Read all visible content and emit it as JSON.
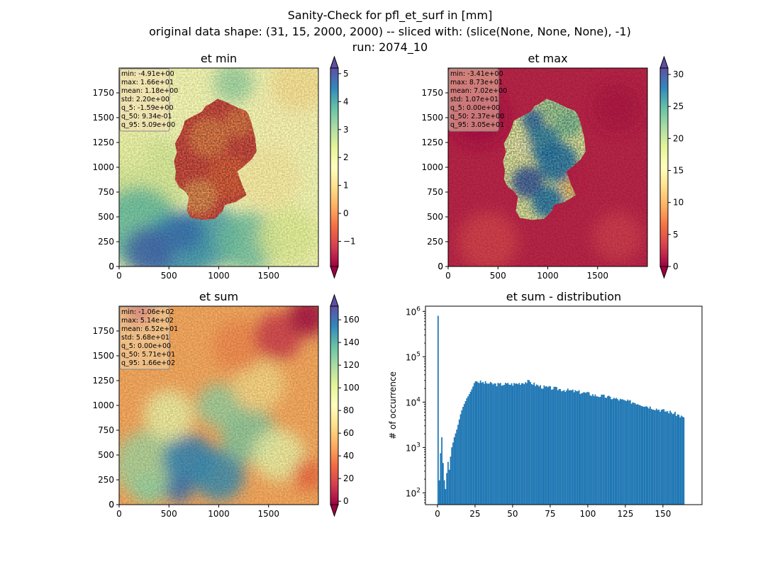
{
  "figure": {
    "title_lines": [
      "Sanity-Check for pfl_et_surf in [mm]",
      "original data shape: (31, 15, 2000, 2000) -- sliced with: (slice(None, None, None), -1)",
      "run: 2074_10"
    ]
  },
  "colors": {
    "hist_bar": "#1f77b4",
    "stats_box": "#f5deb3",
    "spectral": [
      "#9e0142",
      "#d53e4f",
      "#f46d43",
      "#fdae61",
      "#fee08b",
      "#ffffbf",
      "#e6f598",
      "#abdda4",
      "#66c2a5",
      "#3288bd",
      "#5e4fa2"
    ]
  },
  "chart_data": [
    {
      "type": "heatmap",
      "title": "et min",
      "xlim": [
        0,
        2000
      ],
      "ylim": [
        0,
        2000
      ],
      "xticks": [
        0,
        500,
        1000,
        1500
      ],
      "yticks": [
        0,
        250,
        500,
        750,
        1000,
        1250,
        1500,
        1750
      ],
      "colormap": "Spectral",
      "colorbar": {
        "min": -1.9,
        "max": 5.2,
        "ticks": [
          -1,
          0,
          1,
          2,
          3,
          4,
          5
        ],
        "extend": "both"
      },
      "stats": [
        "min: -4.91e+00",
        "max: 1.66e+01",
        "mean: 1.18e+00",
        "std: 2.20e+00",
        "q_5: -1.59e+00",
        "q_50: 9.34e-01",
        "q_95: 5.09e+00"
      ]
    },
    {
      "type": "heatmap",
      "title": "et max",
      "xlim": [
        0,
        2000
      ],
      "ylim": [
        0,
        2000
      ],
      "xticks": [
        0,
        500,
        1000,
        1500
      ],
      "yticks": [
        0,
        250,
        500,
        750,
        1000,
        1250,
        1500,
        1750
      ],
      "colormap": "Spectral",
      "colorbar": {
        "min": 0,
        "max": 31,
        "ticks": [
          0,
          5,
          10,
          15,
          20,
          25,
          30
        ],
        "extend": "both"
      },
      "stats": [
        "min: -3.41e+00",
        "max: 8.73e+01",
        "mean: 7.02e+00",
        "std: 1.07e+01",
        "q_5: 0.00e+00",
        "q_50: 2.37e+00",
        "q_95: 3.05e+01"
      ]
    },
    {
      "type": "heatmap",
      "title": "et sum",
      "xlim": [
        0,
        2000
      ],
      "ylim": [
        0,
        2000
      ],
      "xticks": [
        0,
        500,
        1000,
        1500
      ],
      "yticks": [
        0,
        250,
        500,
        750,
        1000,
        1250,
        1500,
        1750
      ],
      "colormap": "Spectral",
      "colorbar": {
        "min": -3,
        "max": 172,
        "ticks": [
          0,
          20,
          40,
          60,
          80,
          100,
          120,
          140,
          160
        ],
        "extend": "both"
      },
      "stats": [
        "min: -1.06e+02",
        "max: 5.14e+02",
        "mean: 6.52e+01",
        "std: 5.68e+01",
        "q_5: 0.00e+00",
        "q_50: 5.71e+01",
        "q_95: 1.66e+02"
      ]
    },
    {
      "type": "bar",
      "title": "et sum - distribution",
      "xlabel": "",
      "ylabel": "# of occurrence",
      "xlim": [
        -8,
        176
      ],
      "ylim": [
        55,
        1300000
      ],
      "yscale": "log",
      "xticks": [
        0,
        25,
        50,
        75,
        100,
        125,
        150
      ],
      "yticks": [
        100,
        1000,
        10000,
        100000,
        1000000
      ],
      "ytick_labels": [
        [
          "10",
          "2"
        ],
        [
          "10",
          "3"
        ],
        [
          "10",
          "4"
        ],
        [
          "10",
          "5"
        ],
        [
          "10",
          "6"
        ]
      ],
      "bin_width": 0.83,
      "anchors": [
        [
          0,
          800000
        ],
        [
          0.8,
          180
        ],
        [
          1.7,
          800
        ],
        [
          2.5,
          1700
        ],
        [
          3.4,
          400
        ],
        [
          4.2,
          180
        ],
        [
          5,
          120
        ],
        [
          5.9,
          300
        ],
        [
          6.7,
          500
        ],
        [
          7.6,
          300
        ],
        [
          8.4,
          700
        ],
        [
          9.3,
          1100
        ],
        [
          10,
          1300
        ],
        [
          11,
          1800
        ],
        [
          12,
          2200
        ],
        [
          13,
          2900
        ],
        [
          14,
          4000
        ],
        [
          15,
          5500
        ],
        [
          16,
          7000
        ],
        [
          17,
          8500
        ],
        [
          18,
          10000
        ],
        [
          19,
          12000
        ],
        [
          20,
          13500
        ],
        [
          21,
          15500
        ],
        [
          22,
          18000
        ],
        [
          23,
          21000
        ],
        [
          24,
          26000
        ],
        [
          25,
          29000
        ],
        [
          27,
          28000
        ],
        [
          30,
          27000
        ],
        [
          35,
          25500
        ],
        [
          40,
          24500
        ],
        [
          45,
          25000
        ],
        [
          50,
          25000
        ],
        [
          55,
          26500
        ],
        [
          60,
          28500
        ],
        [
          62,
          27000
        ],
        [
          65,
          24000
        ],
        [
          70,
          21500
        ],
        [
          75,
          20500
        ],
        [
          80,
          19500
        ],
        [
          85,
          18500
        ],
        [
          90,
          17500
        ],
        [
          95,
          16500
        ],
        [
          100,
          15500
        ],
        [
          105,
          14000
        ],
        [
          110,
          13500
        ],
        [
          115,
          12500
        ],
        [
          120,
          11500
        ],
        [
          125,
          10500
        ],
        [
          130,
          10000
        ],
        [
          135,
          9000
        ],
        [
          140,
          8000
        ],
        [
          145,
          7200
        ],
        [
          150,
          6500
        ],
        [
          155,
          6000
        ],
        [
          160,
          5200
        ],
        [
          163,
          4600
        ],
        [
          164.2,
          4000
        ]
      ]
    }
  ]
}
